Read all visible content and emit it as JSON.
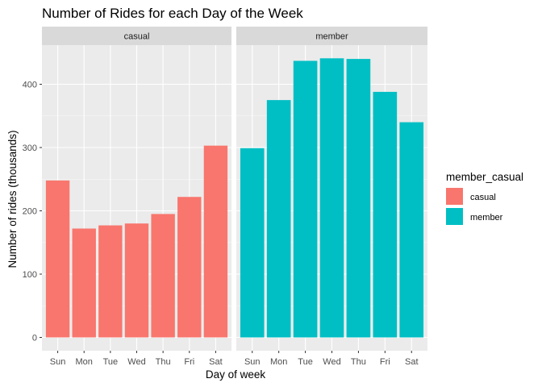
{
  "chart_data": {
    "type": "bar",
    "title": "Number of Rides for each Day of the Week",
    "xlabel": "Day of week",
    "ylabel": "Number of rides (thousands)",
    "categories": [
      "Sun",
      "Mon",
      "Tue",
      "Wed",
      "Thu",
      "Fri",
      "Sat"
    ],
    "ylim": [
      0,
      450
    ],
    "yticks": [
      0,
      100,
      200,
      300,
      400
    ],
    "facet_by": "member_casual",
    "grid": true,
    "legend": {
      "title": "member_casual",
      "placement": "right",
      "entries": [
        {
          "label": "casual",
          "color": "#F8766D"
        },
        {
          "label": "member",
          "color": "#00BFC4"
        }
      ]
    },
    "series": [
      {
        "name": "casual",
        "color": "#F8766D",
        "values": [
          248,
          172,
          177,
          180,
          195,
          222,
          303
        ]
      },
      {
        "name": "member",
        "color": "#00BFC4",
        "values": [
          299,
          375,
          437,
          441,
          440,
          388,
          340
        ]
      }
    ]
  },
  "colors": {
    "panel_bg": "#EBEBEB",
    "strip_bg": "#D9D9D9",
    "grid_major": "#FFFFFF",
    "tick_text": "#4D4D4D",
    "tick_mark": "#333333"
  }
}
